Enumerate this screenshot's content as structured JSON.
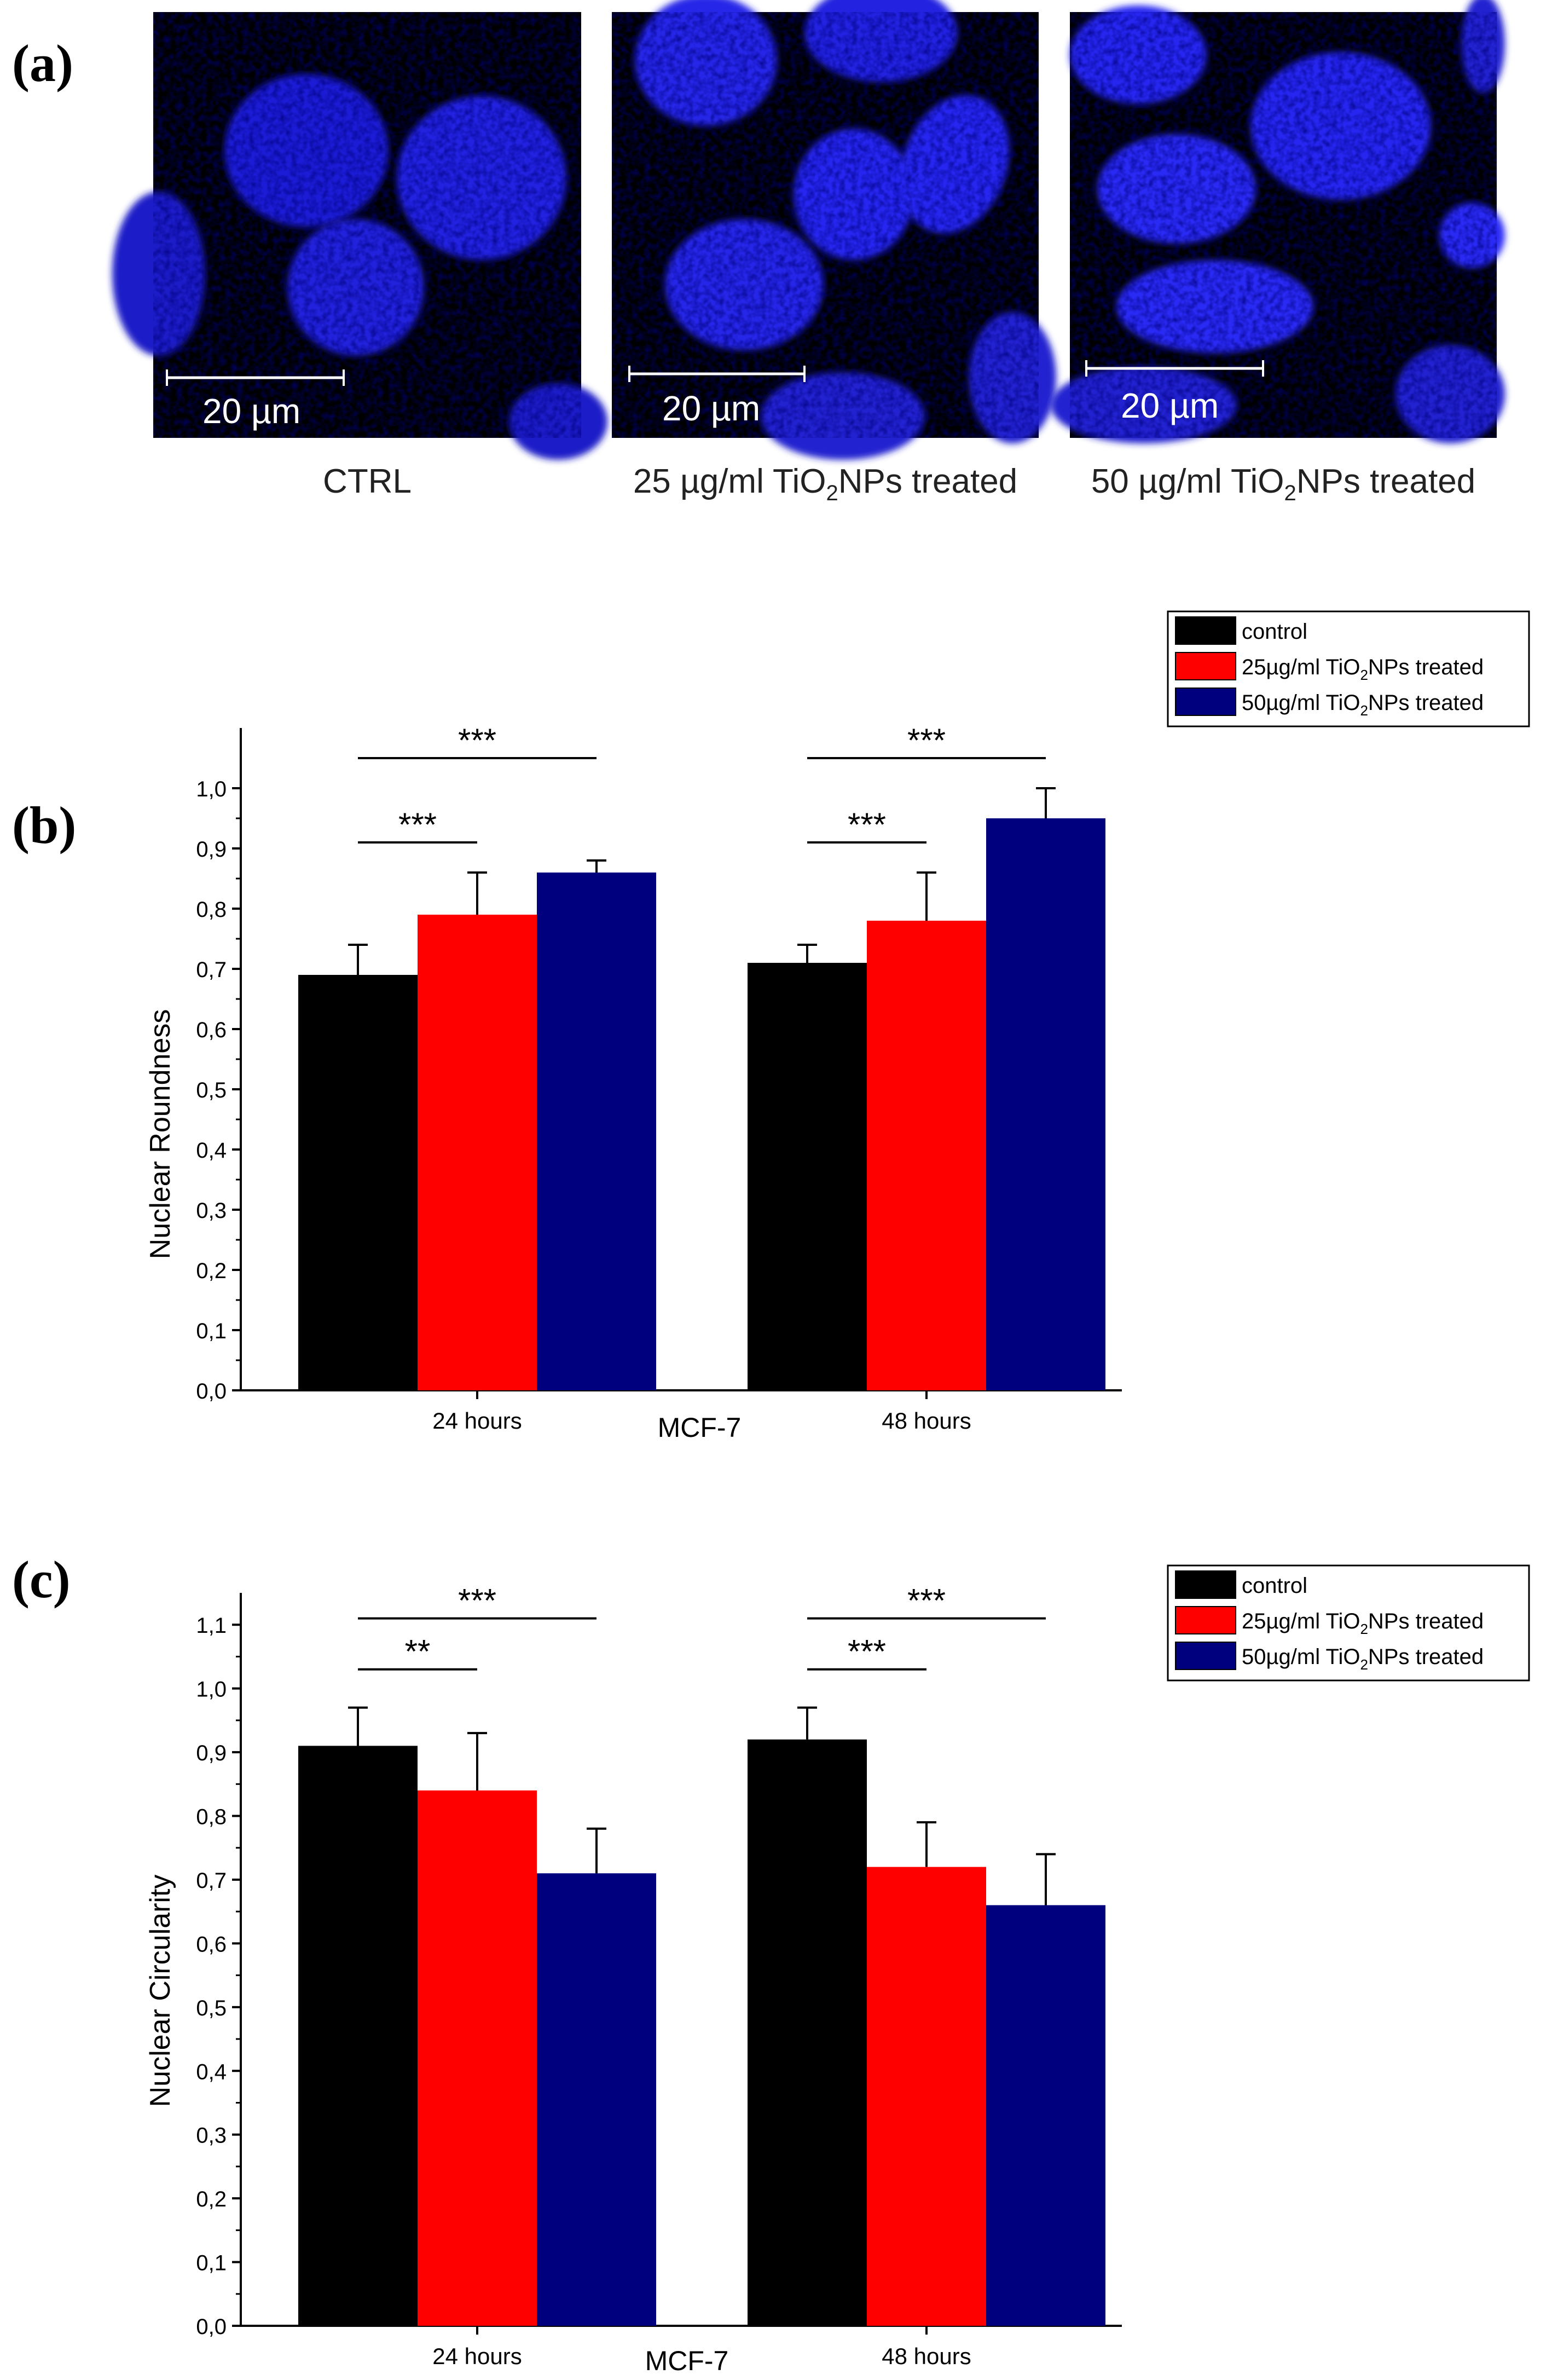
{
  "panel_a": {
    "label": "(a)",
    "images": [
      {
        "caption": "CTRL",
        "caption_main": "CTRL",
        "caption_sub": "",
        "caption_rest": "",
        "scalebar_label": "20 µm"
      },
      {
        "caption": "25 µg/ml TiO2NPs treated",
        "caption_main": "25 µg/ml TiO",
        "caption_sub": "2",
        "caption_rest": "NPs treated",
        "scalebar_label": "20 µm"
      },
      {
        "caption": "50 µg/ml TiO2NPs treated",
        "caption_main": "50 µg/ml TiO",
        "caption_sub": "2",
        "caption_rest": "NPs treated",
        "scalebar_label": "20 µm"
      }
    ],
    "colors": {
      "background": "#000000",
      "nucleus": "#1a1aff",
      "scalebar": "#ffffff"
    }
  },
  "chart_data": [
    {
      "type": "bar",
      "panel_label": "(b)",
      "title": "",
      "xlabel": "MCF-7",
      "ylabel": "Nuclear Roundness",
      "ylim": [
        0,
        1.1
      ],
      "yticks": [
        "0,0",
        "0,1",
        "0,2",
        "0,3",
        "0,4",
        "0,5",
        "0,6",
        "0,7",
        "0,8",
        "0,9",
        "1,0"
      ],
      "ytick_values": [
        0,
        0.1,
        0.2,
        0.3,
        0.4,
        0.5,
        0.6,
        0.7,
        0.8,
        0.9,
        1.0
      ],
      "categories": [
        "24 hours",
        "48 hours"
      ],
      "legend_position": "top-right",
      "series": [
        {
          "name": "control",
          "legend_main": "control",
          "legend_sub": "",
          "legend_rest": "",
          "color": "#000000",
          "values": [
            0.69,
            0.71
          ],
          "errors": [
            0.05,
            0.03
          ]
        },
        {
          "name": "25µg/ml TiO2NPs treated",
          "legend_main": "25µg/ml TiO",
          "legend_sub": "2",
          "legend_rest": "NPs treated",
          "color": "#ff0000",
          "values": [
            0.79,
            0.78
          ],
          "errors": [
            0.07,
            0.08
          ]
        },
        {
          "name": "50µg/ml TiO2NPs treated",
          "legend_main": "50µg/ml TiO",
          "legend_sub": "2",
          "legend_rest": "NPs treated",
          "color": "#00007f",
          "values": [
            0.86,
            0.95
          ],
          "errors": [
            0.02,
            0.05
          ]
        }
      ],
      "significance": [
        {
          "category": 0,
          "from": 0,
          "to": 1,
          "label": "***",
          "y": 0.91
        },
        {
          "category": 0,
          "from": 0,
          "to": 2,
          "label": "***",
          "y": 1.05
        },
        {
          "category": 1,
          "from": 0,
          "to": 1,
          "label": "***",
          "y": 0.91
        },
        {
          "category": 1,
          "from": 0,
          "to": 2,
          "label": "***",
          "y": 1.05
        }
      ]
    },
    {
      "type": "bar",
      "panel_label": "(c)",
      "title": "",
      "xlabel": "MCF-7",
      "ylabel": "Nuclear Circularity",
      "ylim": [
        0,
        1.15
      ],
      "yticks": [
        "0,0",
        "0,1",
        "0,2",
        "0,3",
        "0,4",
        "0,5",
        "0,6",
        "0,7",
        "0,8",
        "0,9",
        "1,0",
        "1,1"
      ],
      "ytick_values": [
        0,
        0.1,
        0.2,
        0.3,
        0.4,
        0.5,
        0.6,
        0.7,
        0.8,
        0.9,
        1.0,
        1.1
      ],
      "categories": [
        "24 hours",
        "48 hours"
      ],
      "legend_position": "top-right",
      "series": [
        {
          "name": "control",
          "legend_main": "control",
          "legend_sub": "",
          "legend_rest": "",
          "color": "#000000",
          "values": [
            0.91,
            0.92
          ],
          "errors": [
            0.06,
            0.05
          ]
        },
        {
          "name": "25µg/ml TiO2NPs treated",
          "legend_main": "25µg/ml TiO",
          "legend_sub": "2",
          "legend_rest": "NPs treated",
          "color": "#ff0000",
          "values": [
            0.84,
            0.72
          ],
          "errors": [
            0.09,
            0.07
          ]
        },
        {
          "name": "50µg/ml TiO2NPs treated",
          "legend_main": "50µg/ml TiO",
          "legend_sub": "2",
          "legend_rest": "NPs treated",
          "color": "#00007f",
          "values": [
            0.71,
            0.66
          ],
          "errors": [
            0.07,
            0.08
          ]
        }
      ],
      "significance": [
        {
          "category": 0,
          "from": 0,
          "to": 1,
          "label": "**",
          "y": 1.03
        },
        {
          "category": 0,
          "from": 0,
          "to": 2,
          "label": "***",
          "y": 1.11
        },
        {
          "category": 1,
          "from": 0,
          "to": 1,
          "label": "***",
          "y": 1.03
        },
        {
          "category": 1,
          "from": 0,
          "to": 2,
          "label": "***",
          "y": 1.11
        }
      ]
    }
  ]
}
